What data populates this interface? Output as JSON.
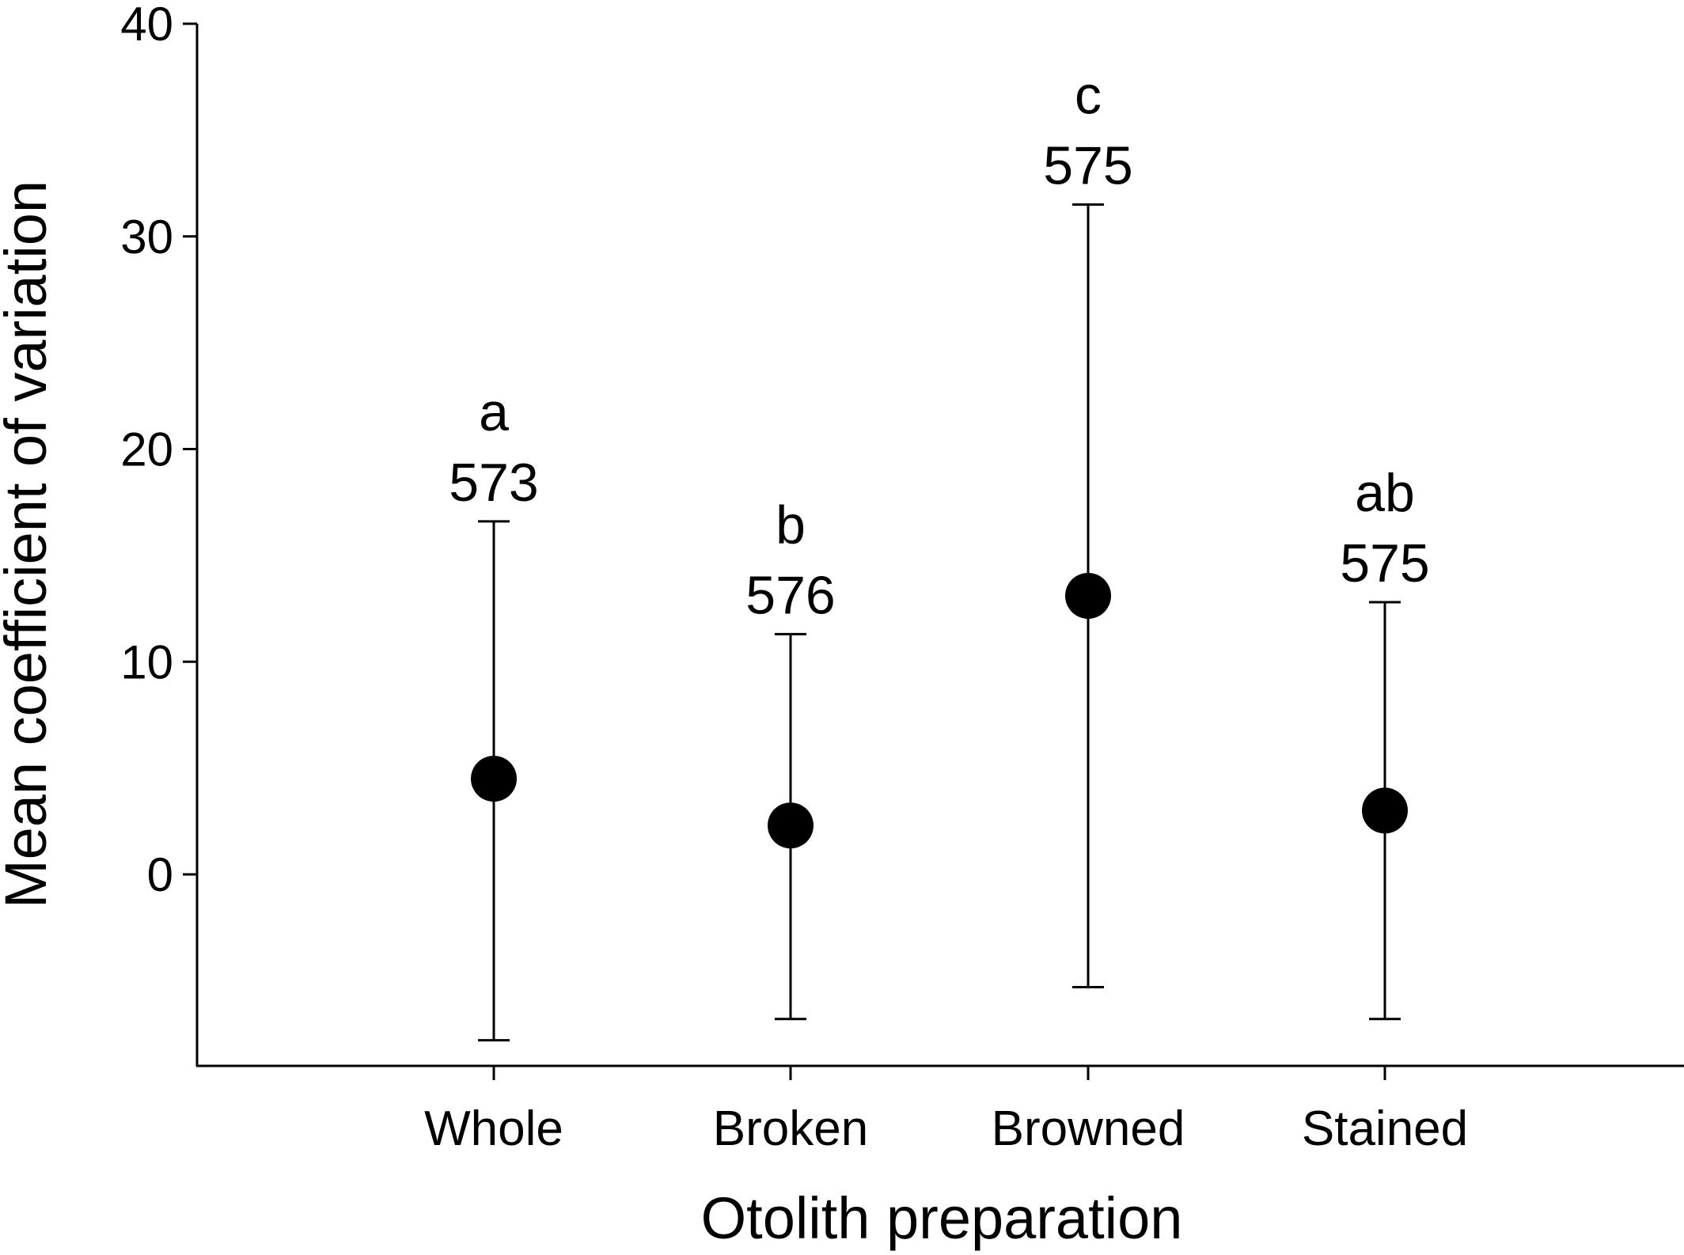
{
  "chart_data": {
    "type": "scatter",
    "xlabel": "Otolith preparation",
    "ylabel": "Mean coefficient of variation",
    "ylim": [
      -9,
      40
    ],
    "yticks": [
      0,
      10,
      20,
      30,
      40
    ],
    "grid": false,
    "categories": [
      "Whole",
      "Broken",
      "Browned",
      "Stained"
    ],
    "series": [
      {
        "values": [
          4.5,
          2.3,
          13.1,
          3.0
        ],
        "error_low": [
          -7.8,
          -6.8,
          -5.3,
          -6.8
        ],
        "error_high": [
          16.6,
          11.3,
          31.5,
          12.8
        ],
        "letters": [
          "a",
          "b",
          "c",
          "ab"
        ],
        "n": [
          "573",
          "576",
          "575",
          "575"
        ]
      }
    ]
  }
}
